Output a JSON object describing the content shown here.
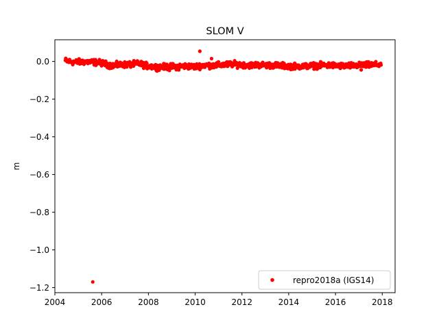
{
  "chart_data": {
    "type": "scatter",
    "title": "SLOM V",
    "xlabel": "",
    "ylabel": "m",
    "xlim": [
      2004.0,
      2018.55
    ],
    "ylim": [
      -1.227,
      0.115
    ],
    "x_ticks": [
      2004,
      2006,
      2008,
      2010,
      2012,
      2014,
      2016,
      2018
    ],
    "x_tick_labels": [
      "2004",
      "2006",
      "2008",
      "2010",
      "2012",
      "2014",
      "2016",
      "2018"
    ],
    "y_ticks": [
      0.0,
      -0.2,
      -0.4,
      -0.6,
      -0.8,
      -1.0,
      -1.2
    ],
    "y_tick_labels": [
      "0.0",
      "−0.2",
      "−0.4",
      "−0.6",
      "−0.8",
      "−1.0",
      "−1.2"
    ],
    "grid": false,
    "legend_position": "lower-right",
    "colors": {
      "series": "#ff0000"
    },
    "series": [
      {
        "name": "repro2018a (IGS14)",
        "marker": "dot",
        "trend": [
          [
            2004.45,
            0.004
          ],
          [
            2004.8,
            -0.004
          ],
          [
            2005.2,
            -0.002
          ],
          [
            2005.6,
            -0.003
          ],
          [
            2006.0,
            -0.008
          ],
          [
            2006.4,
            -0.022
          ],
          [
            2006.8,
            -0.018
          ],
          [
            2007.2,
            -0.016
          ],
          [
            2007.6,
            -0.012
          ],
          [
            2008.0,
            -0.025
          ],
          [
            2008.4,
            -0.03
          ],
          [
            2008.8,
            -0.028
          ],
          [
            2009.2,
            -0.027
          ],
          [
            2009.6,
            -0.025
          ],
          [
            2010.0,
            -0.028
          ],
          [
            2010.4,
            -0.02
          ],
          [
            2010.8,
            -0.022
          ],
          [
            2011.2,
            -0.018
          ],
          [
            2011.6,
            -0.014
          ],
          [
            2012.0,
            -0.018
          ],
          [
            2012.4,
            -0.02
          ],
          [
            2012.8,
            -0.018
          ],
          [
            2013.2,
            -0.02
          ],
          [
            2013.6,
            -0.022
          ],
          [
            2014.0,
            -0.025
          ],
          [
            2014.4,
            -0.026
          ],
          [
            2014.8,
            -0.024
          ],
          [
            2015.2,
            -0.022
          ],
          [
            2015.6,
            -0.02
          ],
          [
            2016.0,
            -0.022
          ],
          [
            2016.4,
            -0.024
          ],
          [
            2016.8,
            -0.022
          ],
          [
            2017.2,
            -0.02
          ],
          [
            2017.6,
            -0.018
          ],
          [
            2017.95,
            -0.016
          ]
        ],
        "scatter_amplitude": 0.015,
        "outliers": [
          [
            2005.62,
            -1.17
          ],
          [
            2010.2,
            0.054
          ],
          [
            2010.7,
            0.015
          ],
          [
            2008.9,
            -0.048
          ],
          [
            2017.1,
            -0.045
          ],
          [
            2009.3,
            -0.045
          ]
        ]
      }
    ]
  }
}
